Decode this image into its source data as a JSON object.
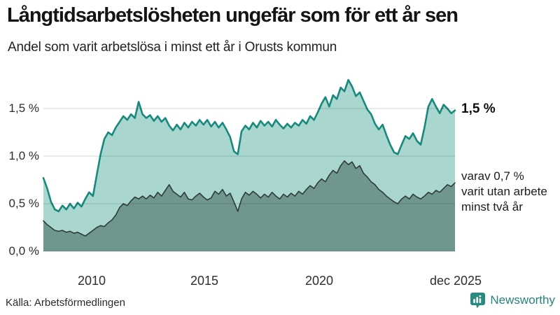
{
  "header": {
    "title": "Långtidsarbetslösheten ungefär som för ett år sen",
    "subtitle": "Andel som varit arbetslösa i minst ett år i Orusts kommun"
  },
  "chart_data": {
    "type": "area",
    "title": "Långtidsarbetslösheten ungefär som för ett år sen",
    "subtitle": "Andel som varit arbetslösa i minst ett år i Orusts kommun",
    "unit": "%",
    "x_range": [
      "jan 2008",
      "dec 2025"
    ],
    "ylim": [
      0,
      1.85
    ],
    "grid": true,
    "gridline_values": [
      1.5,
      1.0,
      0.5,
      0
    ],
    "y_ticks": [
      {
        "label": "1,5 %",
        "value": 1.5
      },
      {
        "label": "1,0 %",
        "value": 1.0
      },
      {
        "label": "0,5 %",
        "value": 0.5
      },
      {
        "label": "0,0 %",
        "value": 0.0
      }
    ],
    "x_ticks": [
      {
        "label": "2010"
      },
      {
        "label": "2015"
      },
      {
        "label": "2020"
      },
      {
        "label": "dec 2025"
      }
    ],
    "series": [
      {
        "name": "Arbetslösa minst ett år",
        "fill": "#a9d7d0",
        "stroke": "#17897d",
        "stroke_width": 2.6,
        "last_value_label": "1,5 %",
        "values": [
          0.77,
          0.66,
          0.52,
          0.44,
          0.42,
          0.48,
          0.44,
          0.5,
          0.45,
          0.51,
          0.47,
          0.55,
          0.62,
          0.58,
          0.8,
          1.02,
          1.18,
          1.25,
          1.22,
          1.3,
          1.36,
          1.42,
          1.38,
          1.44,
          1.4,
          1.57,
          1.44,
          1.4,
          1.43,
          1.37,
          1.42,
          1.36,
          1.4,
          1.32,
          1.27,
          1.33,
          1.28,
          1.35,
          1.3,
          1.36,
          1.32,
          1.38,
          1.33,
          1.38,
          1.31,
          1.36,
          1.3,
          1.35,
          1.28,
          1.2,
          1.05,
          1.02,
          1.26,
          1.32,
          1.28,
          1.35,
          1.3,
          1.37,
          1.32,
          1.36,
          1.31,
          1.38,
          1.33,
          1.29,
          1.34,
          1.3,
          1.35,
          1.32,
          1.38,
          1.34,
          1.42,
          1.38,
          1.46,
          1.55,
          1.62,
          1.52,
          1.64,
          1.6,
          1.72,
          1.68,
          1.8,
          1.73,
          1.63,
          1.67,
          1.58,
          1.49,
          1.44,
          1.34,
          1.28,
          1.33,
          1.22,
          1.12,
          1.04,
          1.02,
          1.12,
          1.21,
          1.18,
          1.24,
          1.16,
          1.12,
          1.3,
          1.52,
          1.6,
          1.52,
          1.45,
          1.54,
          1.5,
          1.45,
          1.48
        ]
      },
      {
        "name": "varav arbetslösa minst två år",
        "fill": "#70978e",
        "stroke": "#2f3d3a",
        "stroke_width": 1.6,
        "last_value_label": "0,7 %",
        "values": [
          0.32,
          0.28,
          0.25,
          0.22,
          0.21,
          0.22,
          0.2,
          0.21,
          0.19,
          0.2,
          0.18,
          0.16,
          0.19,
          0.22,
          0.25,
          0.27,
          0.26,
          0.3,
          0.33,
          0.38,
          0.46,
          0.5,
          0.48,
          0.53,
          0.57,
          0.55,
          0.58,
          0.55,
          0.59,
          0.56,
          0.62,
          0.58,
          0.64,
          0.7,
          0.63,
          0.6,
          0.57,
          0.62,
          0.55,
          0.54,
          0.58,
          0.61,
          0.57,
          0.54,
          0.56,
          0.63,
          0.6,
          0.65,
          0.58,
          0.61,
          0.52,
          0.42,
          0.55,
          0.62,
          0.59,
          0.63,
          0.6,
          0.56,
          0.6,
          0.57,
          0.62,
          0.58,
          0.55,
          0.6,
          0.57,
          0.61,
          0.58,
          0.63,
          0.6,
          0.65,
          0.69,
          0.66,
          0.72,
          0.76,
          0.73,
          0.8,
          0.85,
          0.82,
          0.9,
          0.95,
          0.91,
          0.94,
          0.87,
          0.9,
          0.82,
          0.78,
          0.73,
          0.7,
          0.65,
          0.62,
          0.58,
          0.55,
          0.52,
          0.5,
          0.55,
          0.58,
          0.55,
          0.6,
          0.57,
          0.55,
          0.58,
          0.62,
          0.6,
          0.64,
          0.62,
          0.66,
          0.7,
          0.68,
          0.72
        ]
      }
    ],
    "annotations": {
      "light_end_label": "1,5 %",
      "dark_end_lines": [
        "varav 0,7 %",
        "varit utan arbete",
        "minst två år"
      ]
    },
    "legend_position": "right-annotations"
  },
  "footer": {
    "source": "Källa: Arbetsförmedlingen",
    "brand": "Newsworthy",
    "brand_color": "#27837a"
  },
  "icons": {
    "brand_logo": "newsworthy-speech-bubble-bar-chart-icon"
  }
}
